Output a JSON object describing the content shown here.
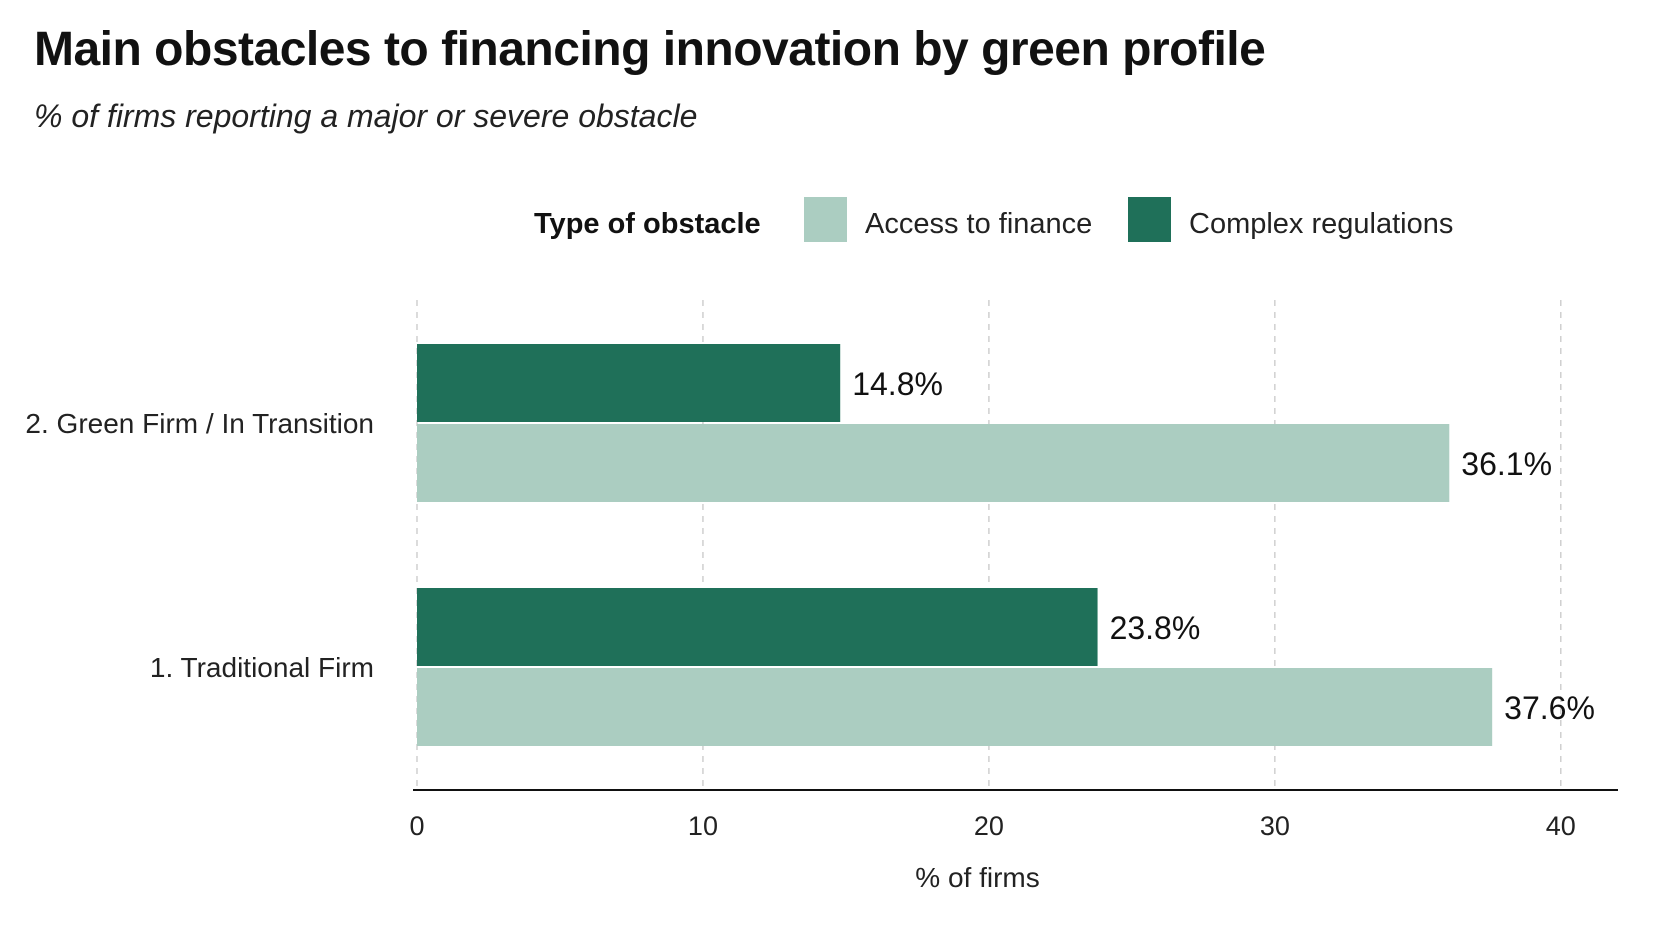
{
  "page": {
    "title": "Main obstacles to financing innovation by green profile",
    "subtitle": "% of firms reporting a major or severe obstacle"
  },
  "chart_data": {
    "type": "bar",
    "orientation": "horizontal",
    "categories": [
      "2. Green Firm / In Transition",
      "1. Traditional Firm"
    ],
    "series": [
      {
        "name": "Complex regulations",
        "color": "#1f7059",
        "values": [
          14.8,
          23.8
        ]
      },
      {
        "name": "Access to finance",
        "color": "#abcdc1",
        "values": [
          36.1,
          37.6
        ]
      }
    ],
    "data_labels": {
      "Complex regulations": [
        "14.8%",
        "23.8%"
      ],
      "Access to finance": [
        "36.1%",
        "37.6%"
      ]
    },
    "legend": {
      "title": "Type of obstacle",
      "placement": "top-center",
      "entries": [
        {
          "label": "Access to finance",
          "color": "#abcdc1"
        },
        {
          "label": "Complex regulations",
          "color": "#1f7059"
        }
      ]
    },
    "xlabel": "% of firms",
    "ylabel": "",
    "xticks": [
      0,
      10,
      20,
      30,
      40
    ],
    "xlim": [
      0,
      42
    ],
    "grid": "vertical dashed"
  }
}
